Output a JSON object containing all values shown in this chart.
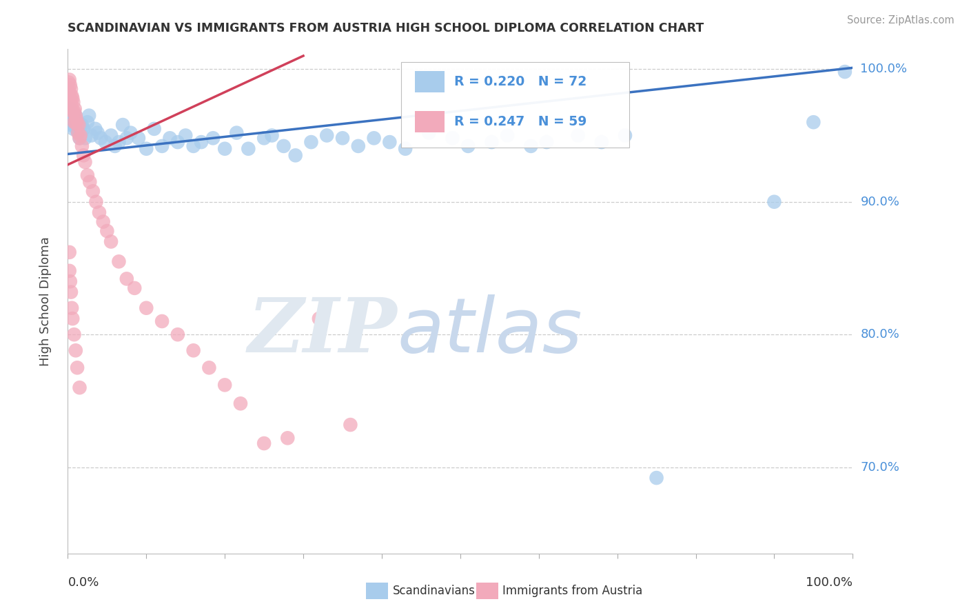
{
  "title": "SCANDINAVIAN VS IMMIGRANTS FROM AUSTRIA HIGH SCHOOL DIPLOMA CORRELATION CHART",
  "source": "Source: ZipAtlas.com",
  "ylabel": "High School Diploma",
  "xlim": [
    0,
    1
  ],
  "ylim": [
    0.635,
    1.015
  ],
  "yticks": [
    0.7,
    0.8,
    0.9,
    1.0
  ],
  "ytick_labels": [
    "70.0%",
    "80.0%",
    "90.0%",
    "100.0%"
  ],
  "xtick_labels": [
    "0.0%",
    "100.0%"
  ],
  "blue_R": 0.22,
  "blue_N": 72,
  "pink_R": 0.247,
  "pink_N": 59,
  "blue_color": "#A8CCEC",
  "pink_color": "#F2AABB",
  "blue_line_color": "#3B72C0",
  "pink_line_color": "#D0405A",
  "grid_color": "#CCCCCC",
  "title_color": "#333333",
  "legend_text_color": "#4A90D9",
  "blue_scatter_x": [
    0.001,
    0.002,
    0.003,
    0.003,
    0.004,
    0.005,
    0.006,
    0.007,
    0.008,
    0.009,
    0.01,
    0.011,
    0.012,
    0.013,
    0.014,
    0.015,
    0.016,
    0.017,
    0.018,
    0.02,
    0.022,
    0.025,
    0.027,
    0.03,
    0.035,
    0.038,
    0.042,
    0.048,
    0.055,
    0.06,
    0.065,
    0.07,
    0.075,
    0.08,
    0.09,
    0.1,
    0.11,
    0.12,
    0.13,
    0.14,
    0.15,
    0.16,
    0.17,
    0.185,
    0.2,
    0.215,
    0.23,
    0.25,
    0.26,
    0.275,
    0.29,
    0.31,
    0.33,
    0.35,
    0.37,
    0.39,
    0.41,
    0.43,
    0.46,
    0.49,
    0.51,
    0.54,
    0.56,
    0.59,
    0.61,
    0.65,
    0.68,
    0.71,
    0.75,
    0.9,
    0.95,
    0.99
  ],
  "blue_scatter_y": [
    0.96,
    0.96,
    0.97,
    0.958,
    0.968,
    0.962,
    0.96,
    0.955,
    0.958,
    0.962,
    0.965,
    0.955,
    0.958,
    0.96,
    0.952,
    0.948,
    0.958,
    0.952,
    0.958,
    0.955,
    0.948,
    0.96,
    0.965,
    0.95,
    0.955,
    0.952,
    0.948,
    0.945,
    0.95,
    0.942,
    0.945,
    0.958,
    0.948,
    0.952,
    0.948,
    0.94,
    0.955,
    0.942,
    0.948,
    0.945,
    0.95,
    0.942,
    0.945,
    0.948,
    0.94,
    0.952,
    0.94,
    0.948,
    0.95,
    0.942,
    0.935,
    0.945,
    0.95,
    0.948,
    0.942,
    0.948,
    0.945,
    0.94,
    0.952,
    0.948,
    0.942,
    0.945,
    0.95,
    0.942,
    0.945,
    0.95,
    0.945,
    0.95,
    0.692,
    0.9,
    0.96,
    0.998
  ],
  "pink_scatter_x": [
    0.001,
    0.001,
    0.002,
    0.002,
    0.003,
    0.003,
    0.004,
    0.004,
    0.005,
    0.005,
    0.006,
    0.006,
    0.007,
    0.008,
    0.008,
    0.009,
    0.01,
    0.01,
    0.011,
    0.012,
    0.013,
    0.014,
    0.015,
    0.016,
    0.018,
    0.02,
    0.022,
    0.025,
    0.028,
    0.032,
    0.036,
    0.04,
    0.045,
    0.05,
    0.055,
    0.065,
    0.075,
    0.085,
    0.1,
    0.12,
    0.14,
    0.16,
    0.18,
    0.2,
    0.22,
    0.25,
    0.28,
    0.32,
    0.36,
    0.002,
    0.002,
    0.003,
    0.004,
    0.005,
    0.006,
    0.008,
    0.01,
    0.012,
    0.015
  ],
  "pink_scatter_y": [
    0.99,
    0.985,
    0.992,
    0.982,
    0.988,
    0.978,
    0.985,
    0.975,
    0.98,
    0.97,
    0.978,
    0.968,
    0.975,
    0.968,
    0.96,
    0.97,
    0.965,
    0.96,
    0.962,
    0.958,
    0.952,
    0.958,
    0.948,
    0.95,
    0.942,
    0.935,
    0.93,
    0.92,
    0.915,
    0.908,
    0.9,
    0.892,
    0.885,
    0.878,
    0.87,
    0.855,
    0.842,
    0.835,
    0.82,
    0.81,
    0.8,
    0.788,
    0.775,
    0.762,
    0.748,
    0.718,
    0.722,
    0.812,
    0.732,
    0.862,
    0.848,
    0.84,
    0.832,
    0.82,
    0.812,
    0.8,
    0.788,
    0.775,
    0.76
  ],
  "blue_trend_x": [
    0.0,
    1.0
  ],
  "blue_trend_y": [
    0.936,
    1.001
  ],
  "pink_trend_x": [
    0.0,
    0.3
  ],
  "pink_trend_y": [
    0.928,
    1.01
  ]
}
